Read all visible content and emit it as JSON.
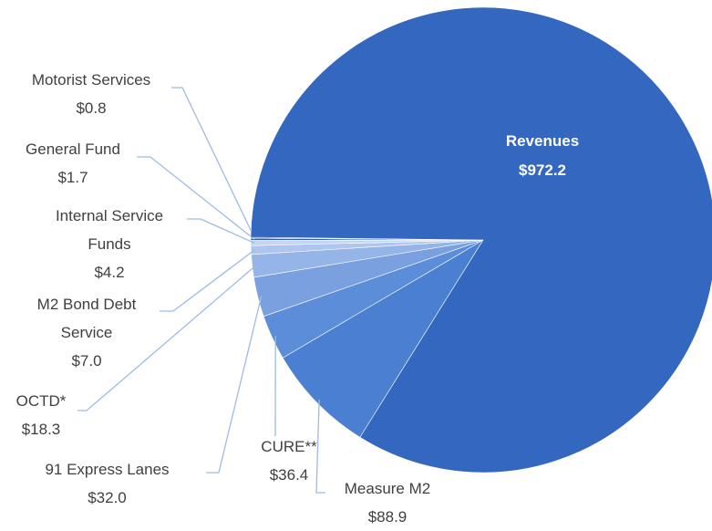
{
  "chart_data": {
    "type": "pie",
    "categories": [
      "Measure M2",
      "CURE**",
      "91 Express Lanes",
      "OCTD*",
      "M2 Bond Debt Service",
      "Internal Service Funds",
      "General Fund",
      "Motorist Services",
      "Revenues"
    ],
    "values": [
      88.9,
      36.4,
      32.0,
      18.3,
      7.0,
      4.2,
      1.7,
      0.8,
      972.2
    ],
    "value_labels": [
      "$88.9",
      "$36.4",
      "$32.0",
      "$18.3",
      "$7.0",
      "$4.2",
      "$1.7",
      "$0.8",
      "$972.2"
    ],
    "colors": [
      "#4a7fd2",
      "#5b8dd8",
      "#7aa0e0",
      "#95b4e8",
      "#aec6ee",
      "#c5d6f3",
      "#2f5cad",
      "#25509e",
      "#3467bf"
    ]
  }
}
